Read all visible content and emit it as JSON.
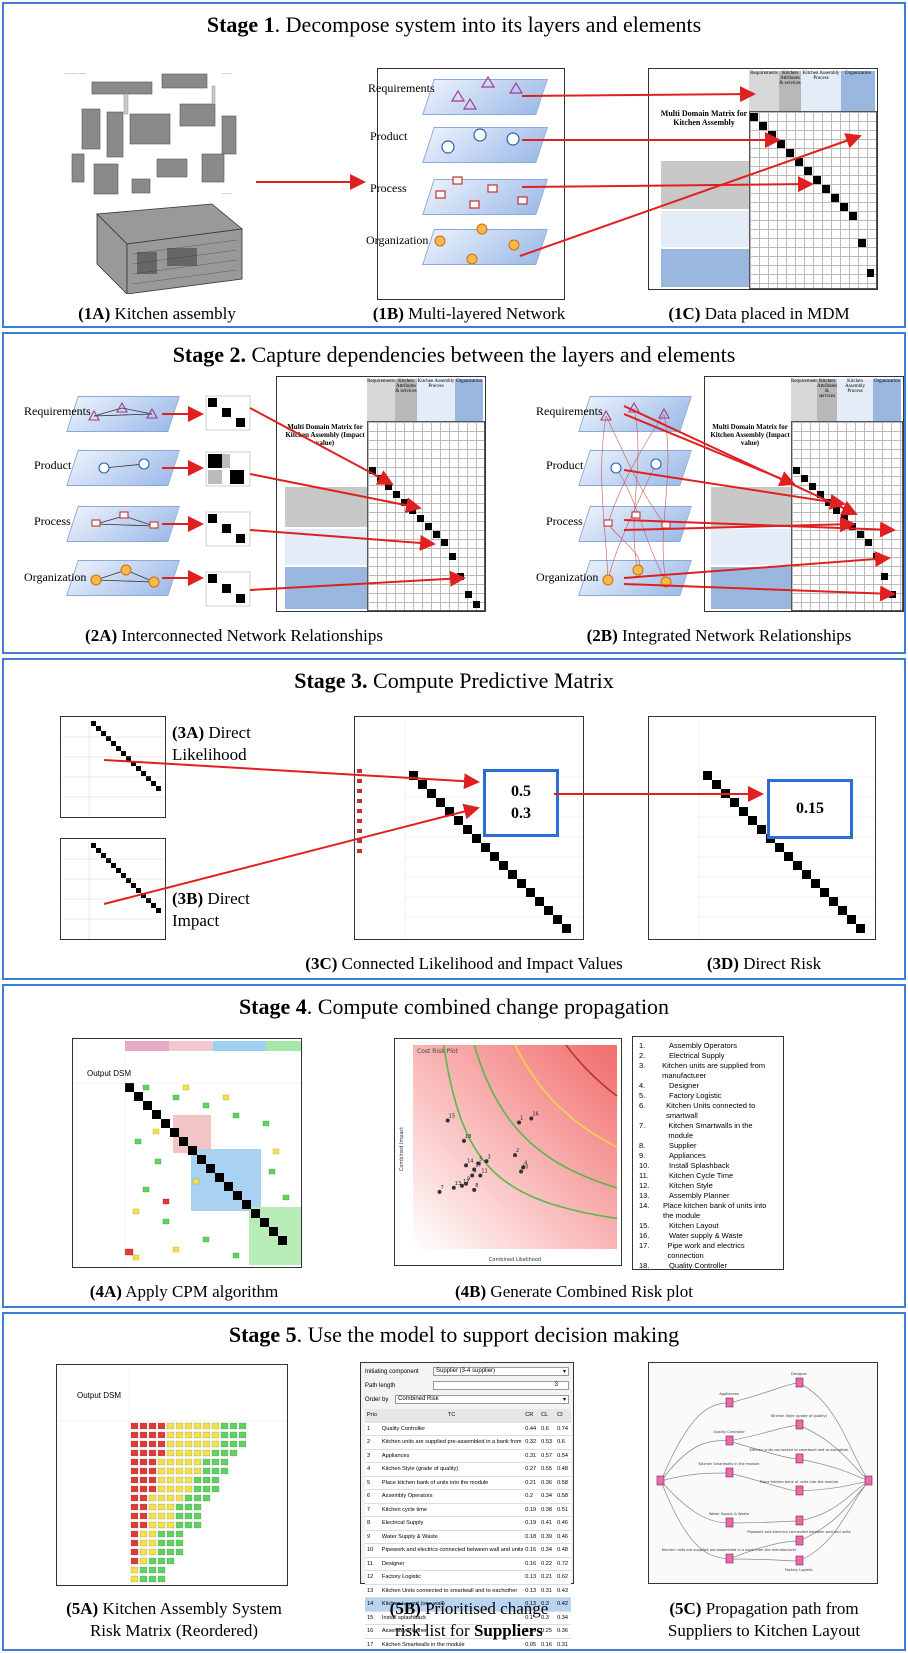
{
  "stages": [
    {
      "num": "Stage 1",
      "text": ". Decompose system into its layers and elements"
    },
    {
      "num": "Stage 2.",
      "text": " Capture dependencies between the layers and elements"
    },
    {
      "num": "Stage 3.",
      "text": " Compute Predictive Matrix"
    },
    {
      "num": "Stage 4",
      "text": ". Compute combined change propagation"
    },
    {
      "num": "Stage 5",
      "text": ". Use the model to support decision making"
    }
  ],
  "captions": {
    "c1a": {
      "id": "(1A)",
      "text": " Kitchen assembly"
    },
    "c1b": {
      "id": "(1B)",
      "text": " Multi-layered Network"
    },
    "c1c": {
      "id": "(1C)",
      "text": " Data placed in MDM"
    },
    "c2a": {
      "id": "(2A)",
      "text": " Interconnected Network Relationships"
    },
    "c2b": {
      "id": "(2B)",
      "text": " Integrated Network Relationships"
    },
    "c3c": {
      "id": "(3C)",
      "text": " Connected Likelihood and Impact Values"
    },
    "c3d": {
      "id": "(3D)",
      "text": " Direct Risk"
    },
    "c4a": {
      "id": "(4A)",
      "text": " Apply CPM algorithm"
    },
    "c4b": {
      "id": "(4B)",
      "text": " Generate Combined Risk plot"
    },
    "c5a_l1": {
      "id": "(5A)",
      "text": " Kitchen Assembly System"
    },
    "c5a_l2": "Risk Matrix (Reordered)",
    "c5b_l1": {
      "id": "(5B)",
      "text": " Prioritised change"
    },
    "c5b_l2_pre": "risk list for ",
    "c5b_l2_bold": "Suppliers",
    "c5c_l1": {
      "id": "(5C)",
      "text": " Propagation path from"
    },
    "c5c_l2": "Suppliers to Kitchen Layout"
  },
  "layers": [
    "Requirements",
    "Product",
    "Process",
    "Organization"
  ],
  "mdm": {
    "title": "Multi Domain Matrix for Kitchen Assembly",
    "title_impact": "Multi Domain Matrix for Kitchen Assembly (Impact value)",
    "headers": [
      "Requirements",
      "Kitchen Attributes & services",
      "Kitchen Assembly Process",
      "Organization"
    ]
  },
  "stage3": {
    "label_3a_id": "(3A)",
    "label_3a_1": " Direct",
    "label_3a_2": "Likelihood",
    "label_3b_id": "(3B)",
    "label_3b_1": " Direct",
    "label_3b_2": "Impact",
    "likelihood": "0.5",
    "impact": "0.3",
    "risk": "0.15"
  },
  "stage4": {
    "matrix_title": "Output DSM",
    "plot_title": "Cost Risk Plot",
    "plot_xlabel": "Combined Likelihood",
    "plot_ylabel": "Combined Impact",
    "legend": [
      "Assembly Operators",
      "Electrical Supply",
      "Kitchen units are supplied from manufacturer",
      "Designer",
      "Factory Logistic",
      "Kitchen Units connected to smartwall",
      "Kitchen Smartwalls in the module",
      "Supplier",
      "Appliances",
      "Install Splashback",
      "Kitchen Cycle Time",
      "Kitchen Style",
      "Assembly Planner",
      "Place kitchen bank of units into the module",
      "Kitchen Layout",
      "Water supply & Waste",
      "Pipe work and electrics connection",
      "Quality Controller"
    ],
    "points": [
      {
        "n": "1",
        "x": 0.52,
        "y": 0.62
      },
      {
        "n": "2",
        "x": 0.5,
        "y": 0.46
      },
      {
        "n": "3",
        "x": 0.36,
        "y": 0.43
      },
      {
        "n": "4",
        "x": 0.54,
        "y": 0.4
      },
      {
        "n": "5",
        "x": 0.32,
        "y": 0.42
      },
      {
        "n": "6",
        "x": 0.29,
        "y": 0.36
      },
      {
        "n": "7",
        "x": 0.13,
        "y": 0.28
      },
      {
        "n": "8",
        "x": 0.3,
        "y": 0.29
      },
      {
        "n": "9",
        "x": 0.26,
        "y": 0.32
      },
      {
        "n": "10",
        "x": 0.53,
        "y": 0.38
      },
      {
        "n": "11",
        "x": 0.33,
        "y": 0.36
      },
      {
        "n": "12",
        "x": 0.24,
        "y": 0.31
      },
      {
        "n": "13",
        "x": 0.2,
        "y": 0.3
      },
      {
        "n": "14",
        "x": 0.26,
        "y": 0.41
      },
      {
        "n": "15",
        "x": 0.17,
        "y": 0.63
      },
      {
        "n": "16",
        "x": 0.58,
        "y": 0.64
      },
      {
        "n": "17",
        "x": 0.3,
        "y": 0.39
      },
      {
        "n": "18",
        "x": 0.25,
        "y": 0.53
      }
    ]
  },
  "stage5": {
    "matrix_title": "Output DSM",
    "initiating_label": "Initiating component",
    "initiating_value": "Supplier (3-4 supplier)",
    "path_length_label": "Path length",
    "path_length_value": "3",
    "order_label": "Order by",
    "order_value": "Combined Risk",
    "table_headers": [
      "Prio",
      "TC",
      "CR",
      "CL",
      "CI"
    ],
    "table_rows": [
      [
        "1",
        "Quality Controller",
        "0.44",
        "0.6",
        "0.74"
      ],
      [
        "2",
        "Kitchen units are supplied pre-assembled in a bank from the manufacturer",
        "0.32",
        "0.53",
        "0.6"
      ],
      [
        "3",
        "Appliances",
        "0.31",
        "0.57",
        "0.54"
      ],
      [
        "4",
        "Kitchen Style (grade of quality)",
        "0.27",
        "0.55",
        "0.48"
      ],
      [
        "5",
        "Place kitchen bank of units into the module",
        "0.21",
        "0.36",
        "0.58"
      ],
      [
        "6",
        "Assembly Operators",
        "0.2",
        "0.34",
        "0.58"
      ],
      [
        "7",
        "Kitchen cycle time",
        "0.19",
        "0.38",
        "0.51"
      ],
      [
        "8",
        "Electrical Supply",
        "0.19",
        "0.41",
        "0.46"
      ],
      [
        "9",
        "Water Supply & Waste",
        "0.18",
        "0.39",
        "0.46"
      ],
      [
        "10",
        "Pipework and electrics connected between wall and units",
        "0.16",
        "0.34",
        "0.48"
      ],
      [
        "11",
        "Designer",
        "0.16",
        "0.22",
        "0.72"
      ],
      [
        "12",
        "Factory Logistic",
        "0.13",
        "0.21",
        "0.62"
      ],
      [
        "13",
        "Kitchen Units connected to smartwall and to eachother",
        "0.13",
        "0.31",
        "0.43"
      ],
      [
        "14",
        "Kitchen Layout (one wall)",
        "0.13",
        "0.3",
        "0.42"
      ],
      [
        "15",
        "Install splashback",
        "0.1",
        "0.3",
        "0.34"
      ],
      [
        "16",
        "Assembly Planner",
        "0.09",
        "0.25",
        "0.36"
      ],
      [
        "17",
        "Kitchen Smartwalls in the module",
        "0.05",
        "0.16",
        "0.31"
      ],
      [
        "18",
        "Supplier (3-4 supplier)",
        "0.0",
        "0.0",
        "0.0"
      ]
    ],
    "path_nodes": [
      "Appliances",
      "Designer",
      "Kitchen Style (grade of quality)",
      "Quality Controller",
      "Kitchen units connected to smartwall and to eachother",
      "Place kitchen bank of units into the module",
      "Kitchen Smartwalls in the module",
      "Water Supply & Waste",
      "Kitchen units are supplied pre-assembled in a bank from the manufacturer",
      "Pipework and electrics connected between wall and units",
      "Factory Logistic"
    ]
  },
  "colors": {
    "frame_blue": "#3b7dd8",
    "arrow_red": "#e02020",
    "value_box_blue": "#2a6fd1"
  }
}
